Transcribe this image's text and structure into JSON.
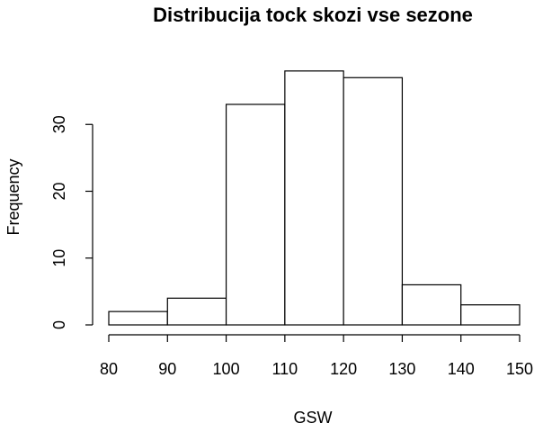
{
  "chart_data": {
    "type": "bar",
    "title": "Distribucija tock skozi vse sezone",
    "xlabel": "GSW",
    "ylabel": "Frequency",
    "bins": [
      {
        "start": 80,
        "end": 90,
        "count": 2
      },
      {
        "start": 90,
        "end": 100,
        "count": 4
      },
      {
        "start": 100,
        "end": 110,
        "count": 33
      },
      {
        "start": 110,
        "end": 120,
        "count": 38
      },
      {
        "start": 120,
        "end": 130,
        "count": 37
      },
      {
        "start": 130,
        "end": 140,
        "count": 6
      },
      {
        "start": 140,
        "end": 150,
        "count": 3
      }
    ],
    "xticks": [
      80,
      90,
      100,
      110,
      120,
      130,
      140,
      150
    ],
    "yticks": [
      0,
      10,
      20,
      30
    ],
    "xlim": [
      80,
      150
    ],
    "ylim": [
      0,
      40
    ],
    "grid": false,
    "colors": {
      "bar_fill": "#ffffff",
      "bar_stroke": "#000000"
    }
  }
}
